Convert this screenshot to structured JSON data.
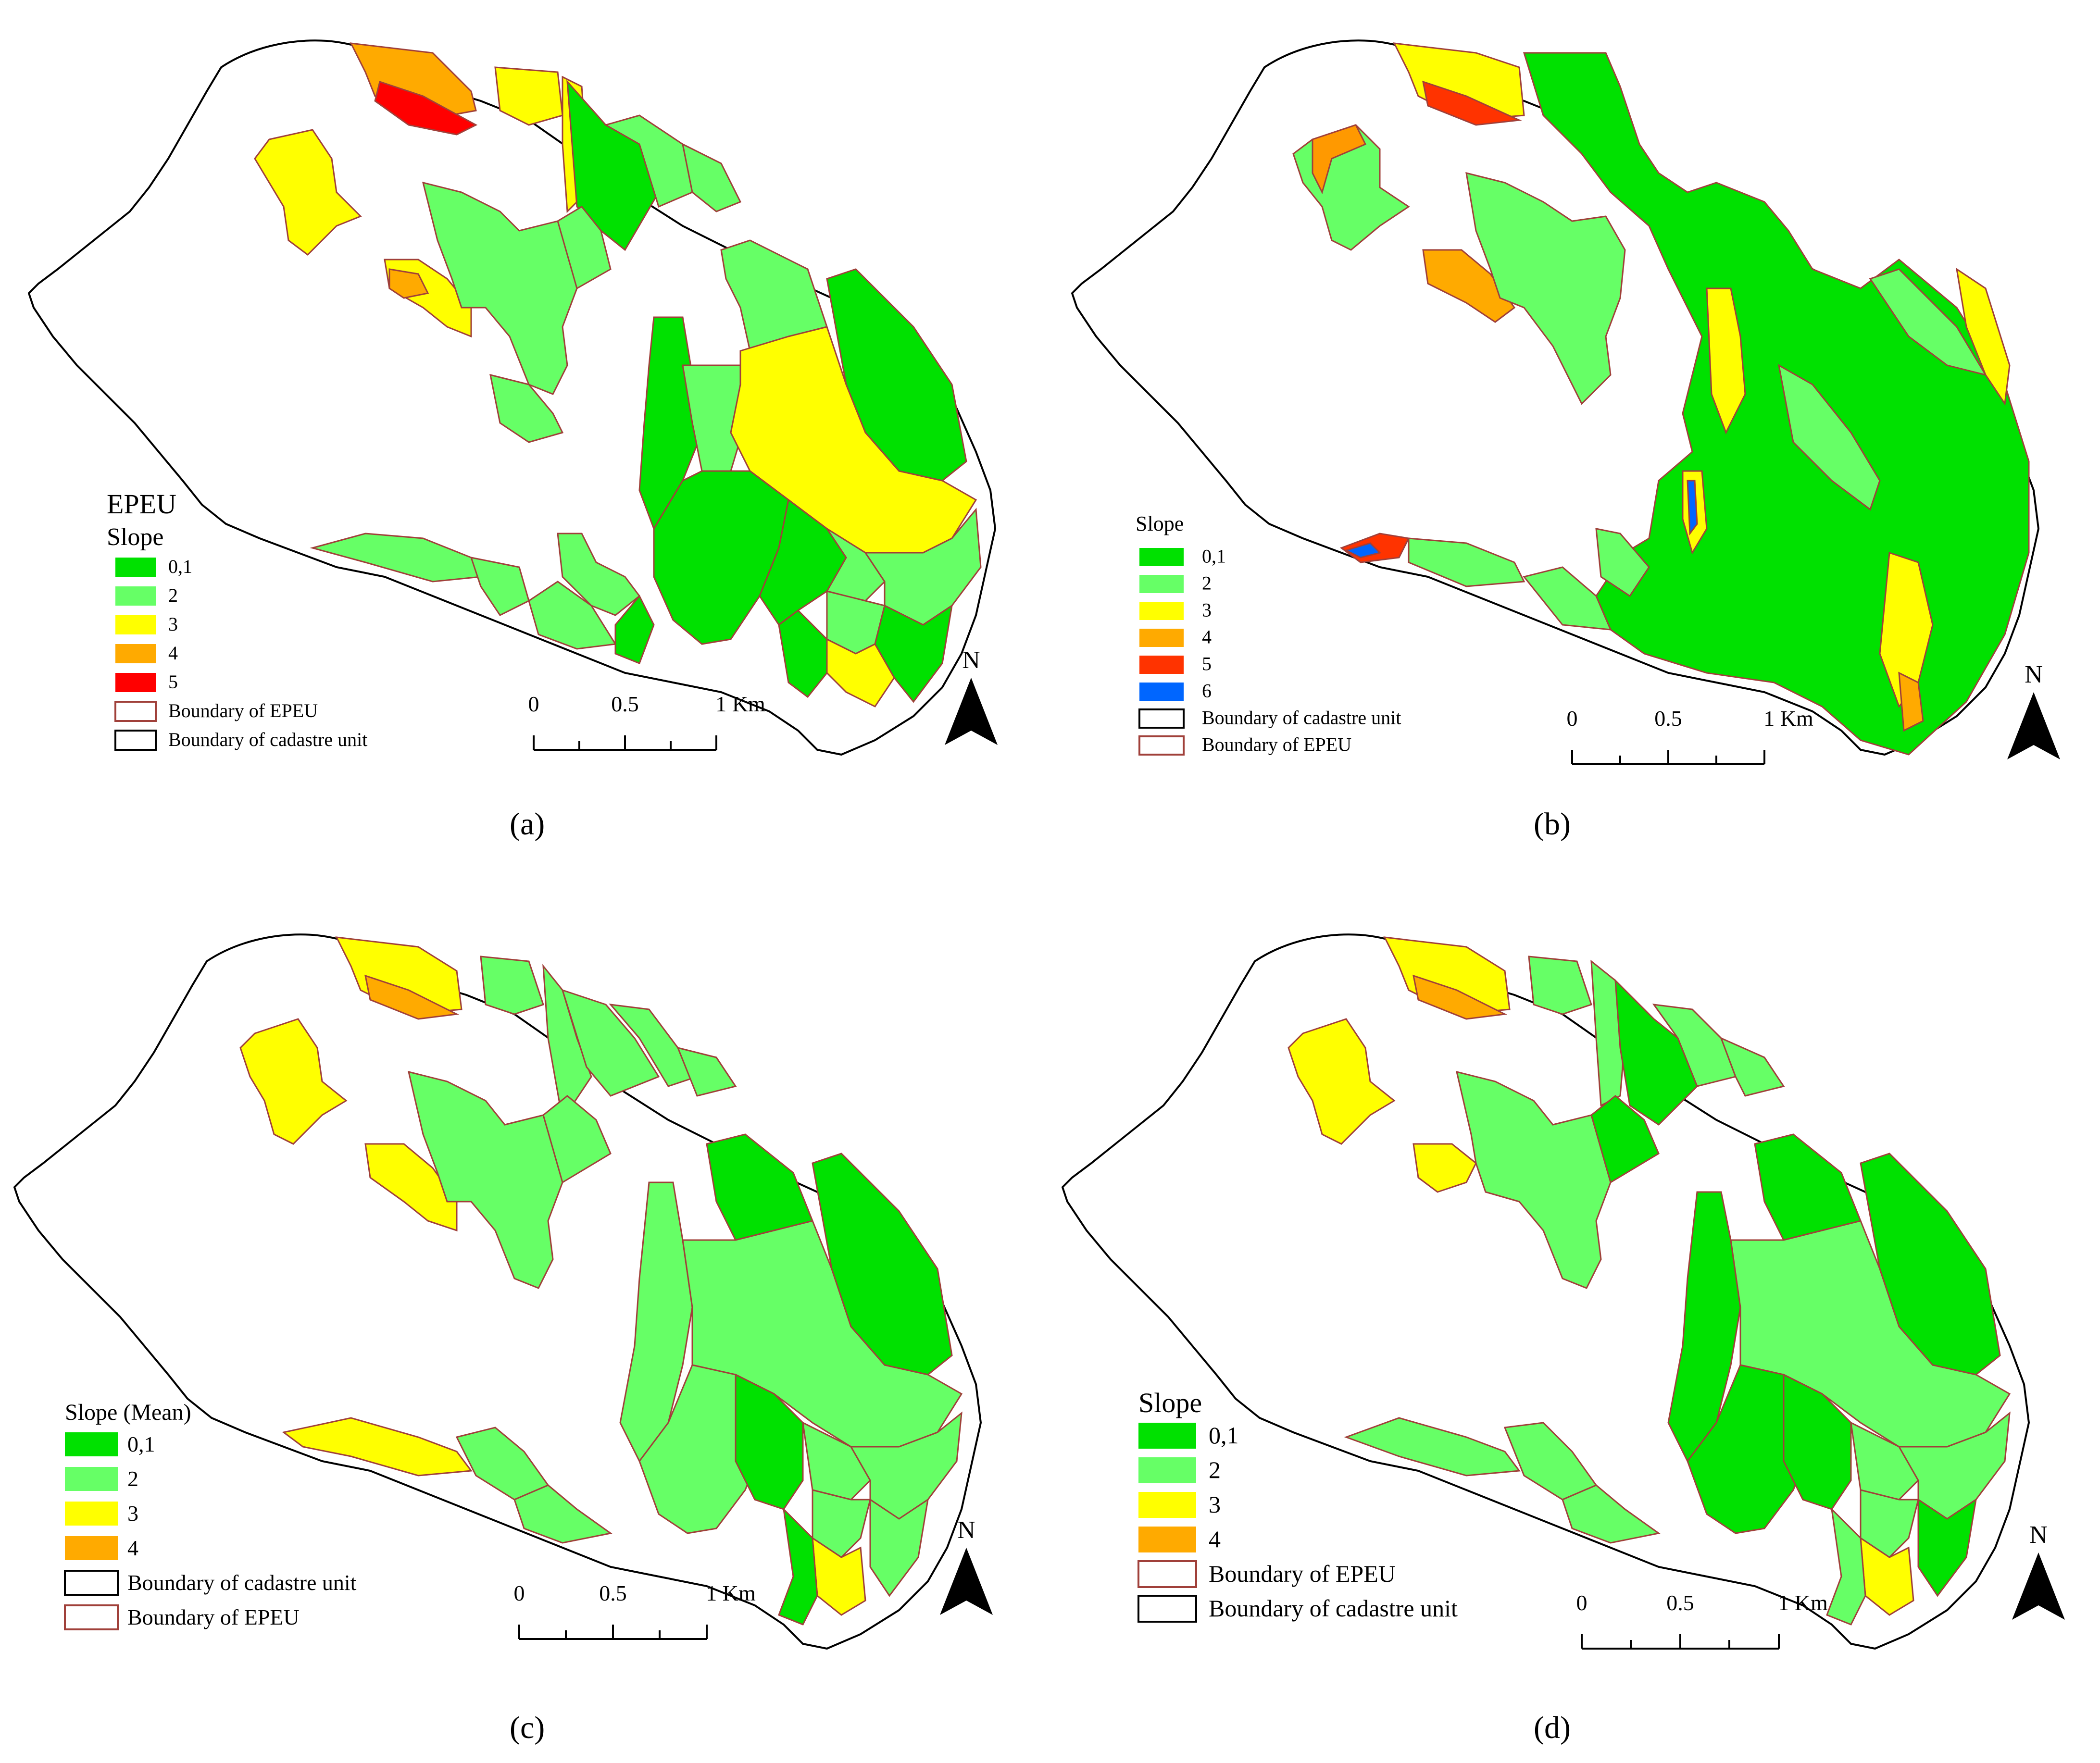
{
  "colors": {
    "class_0_1": "#00e100",
    "class_2": "#66ff66",
    "class_3": "#ffff00",
    "class_4": "#ffaa00",
    "class_5_a": "#ff0000",
    "class_5_b": "#ff3300",
    "class_6": "#0066ff",
    "epeu_boundary": "#a0403a",
    "cadastre_boundary": "#000000"
  },
  "north_label": "N",
  "scale_bar": {
    "tick_labels": [
      "0",
      "0.5",
      "1 Km"
    ]
  },
  "panels": [
    {
      "id": "a",
      "caption": "(a)",
      "legend": {
        "heading": "EPEU",
        "title": "Slope",
        "classes": [
          "0,1",
          "2",
          "3",
          "4",
          "5"
        ],
        "boundaries": [
          "Boundary of EPEU",
          "Boundary of cadastre unit"
        ]
      }
    },
    {
      "id": "b",
      "caption": "(b)",
      "legend": {
        "heading": "",
        "title": "Slope",
        "classes": [
          "0,1",
          "2",
          "3",
          "4",
          "5",
          "6"
        ],
        "boundaries": [
          "Boundary of cadastre unit",
          "Boundary of EPEU"
        ]
      }
    },
    {
      "id": "c",
      "caption": "(c)",
      "legend": {
        "heading": "",
        "title": "Slope (Mean)",
        "classes": [
          "0,1",
          "2",
          "3",
          "4"
        ],
        "boundaries": [
          "Boundary of cadastre unit",
          "Boundary of EPEU"
        ]
      }
    },
    {
      "id": "d",
      "caption": "(d)",
      "legend": {
        "heading": "",
        "title": "Slope",
        "classes": [
          "0,1",
          "2",
          "3",
          "4"
        ],
        "boundaries": [
          "Boundary of EPEU",
          "Boundary of cadastre unit"
        ]
      }
    }
  ]
}
